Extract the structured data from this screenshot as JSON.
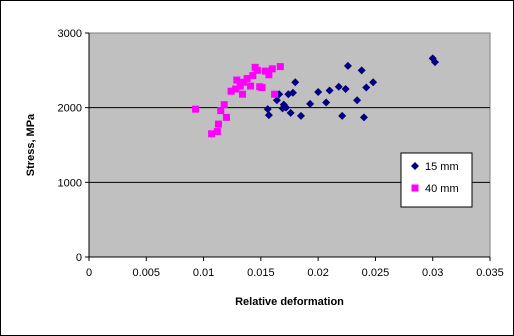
{
  "chart_data": {
    "type": "scatter",
    "title": "",
    "xlabel": "Relative deformation",
    "ylabel": "Stress, MPa",
    "xlim": [
      0,
      0.035
    ],
    "ylim": [
      0,
      3000
    ],
    "x_ticks": [
      "0",
      "0.005",
      "0.01",
      "0.015",
      "0.02",
      "0.025",
      "0.03",
      "0.035"
    ],
    "y_ticks": [
      "0",
      "1000",
      "2000",
      "3000"
    ],
    "grid": "horizontal major gridlines",
    "plot_background": "#c0c0c0",
    "legend_position": "right",
    "series": [
      {
        "name": "15 mm",
        "marker": "diamond",
        "color": "#000080",
        "points": [
          [
            0.0156,
            1980
          ],
          [
            0.0157,
            1900
          ],
          [
            0.0164,
            2100
          ],
          [
            0.0166,
            2180
          ],
          [
            0.0169,
            1990
          ],
          [
            0.017,
            2040
          ],
          [
            0.0172,
            2000
          ],
          [
            0.0174,
            2180
          ],
          [
            0.0176,
            1930
          ],
          [
            0.0178,
            2200
          ],
          [
            0.018,
            2340
          ],
          [
            0.0185,
            1890
          ],
          [
            0.0193,
            2050
          ],
          [
            0.02,
            2210
          ],
          [
            0.0207,
            2070
          ],
          [
            0.021,
            2230
          ],
          [
            0.0218,
            2280
          ],
          [
            0.0221,
            1890
          ],
          [
            0.0224,
            2250
          ],
          [
            0.0226,
            2560
          ],
          [
            0.0234,
            2100
          ],
          [
            0.0238,
            2500
          ],
          [
            0.024,
            1870
          ],
          [
            0.0242,
            2270
          ],
          [
            0.0248,
            2340
          ],
          [
            0.03,
            2660
          ],
          [
            0.0302,
            2610
          ]
        ]
      },
      {
        "name": "40 mm",
        "marker": "square",
        "color": "#ff00ff",
        "points": [
          [
            0.0093,
            1980
          ],
          [
            0.0107,
            1650
          ],
          [
            0.0112,
            1680
          ],
          [
            0.0113,
            1780
          ],
          [
            0.0115,
            1960
          ],
          [
            0.0118,
            2040
          ],
          [
            0.012,
            1870
          ],
          [
            0.0124,
            2220
          ],
          [
            0.0128,
            2250
          ],
          [
            0.0129,
            2370
          ],
          [
            0.0132,
            2290
          ],
          [
            0.0134,
            2180
          ],
          [
            0.0135,
            2340
          ],
          [
            0.0138,
            2390
          ],
          [
            0.0141,
            2290
          ],
          [
            0.0143,
            2430
          ],
          [
            0.0145,
            2540
          ],
          [
            0.0147,
            2500
          ],
          [
            0.0149,
            2280
          ],
          [
            0.0151,
            2270
          ],
          [
            0.0154,
            2490
          ],
          [
            0.0157,
            2440
          ],
          [
            0.016,
            2520
          ],
          [
            0.0162,
            2180
          ],
          [
            0.0167,
            2550
          ]
        ]
      }
    ]
  }
}
